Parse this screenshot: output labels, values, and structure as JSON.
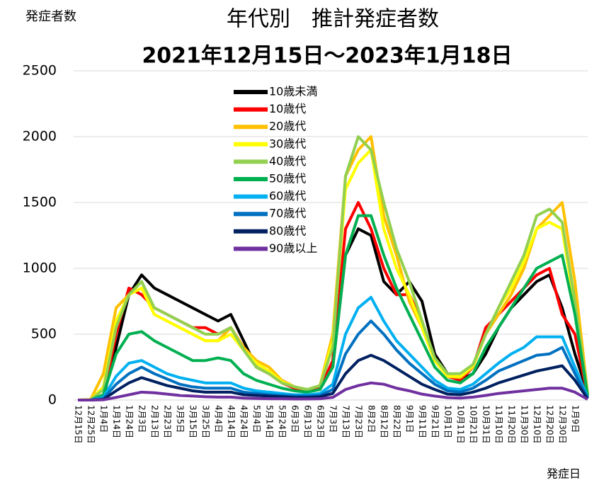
{
  "chart_data": {
    "type": "line",
    "title": "年代別　推計発症者数",
    "subtitle": "2021年12月15日～2023年1月18日",
    "y_label": "発症者数",
    "x_label": "発症日",
    "categories": [
      "12月15日",
      "12月25日",
      "1月4日",
      "1月14日",
      "1月24日",
      "2月3日",
      "2月13日",
      "2月23日",
      "3月5日",
      "3月15日",
      "3月25日",
      "4月4日",
      "4月14日",
      "4月24日",
      "5月4日",
      "5月14日",
      "5月24日",
      "6月3日",
      "6月13日",
      "6月23日",
      "7月3日",
      "7月13日",
      "7月23日",
      "8月2日",
      "8月12日",
      "8月22日",
      "9月1日",
      "9月11日",
      "9月21日",
      "10月1日",
      "10月11日",
      "10月21日",
      "10月31日",
      "11月10日",
      "11月20日",
      "11月30日",
      "12月10日",
      "12月20日",
      "12月30日",
      "1月9日",
      null
    ],
    "ylim": [
      0,
      2500
    ],
    "yticks": [
      0,
      500,
      1000,
      1500,
      2000,
      2500
    ],
    "grid": true,
    "series": [
      {
        "name": "10歳未満",
        "color": "#000000",
        "values": [
          0,
          0,
          20,
          400,
          800,
          950,
          850,
          800,
          750,
          700,
          650,
          600,
          650,
          450,
          250,
          200,
          150,
          100,
          80,
          100,
          250,
          1100,
          1300,
          1250,
          900,
          800,
          900,
          750,
          350,
          200,
          150,
          200,
          350,
          550,
          700,
          800,
          900,
          950,
          700,
          350,
          50
        ]
      },
      {
        "name": "10歳代",
        "color": "#ff0000",
        "values": [
          0,
          0,
          30,
          500,
          850,
          800,
          700,
          650,
          600,
          550,
          550,
          500,
          550,
          400,
          250,
          200,
          130,
          90,
          70,
          90,
          300,
          1300,
          1500,
          1300,
          1000,
          800,
          800,
          600,
          300,
          180,
          150,
          250,
          550,
          650,
          750,
          850,
          950,
          1000,
          650,
          500,
          30
        ]
      },
      {
        "name": "20歳代",
        "color": "#ffc000",
        "values": [
          0,
          5,
          200,
          700,
          800,
          850,
          650,
          600,
          550,
          500,
          450,
          450,
          550,
          400,
          300,
          250,
          150,
          100,
          80,
          110,
          500,
          1700,
          1900,
          2000,
          1400,
          1100,
          750,
          550,
          300,
          180,
          170,
          250,
          500,
          650,
          800,
          1000,
          1300,
          1400,
          1500,
          900,
          50
        ]
      },
      {
        "name": "30歳代",
        "color": "#ffff00",
        "values": [
          0,
          3,
          100,
          600,
          800,
          850,
          650,
          600,
          550,
          500,
          450,
          450,
          500,
          380,
          280,
          220,
          140,
          100,
          80,
          110,
          450,
          1600,
          1800,
          1900,
          1300,
          1000,
          800,
          550,
          300,
          180,
          180,
          260,
          500,
          700,
          850,
          1050,
          1300,
          1350,
          1300,
          700,
          40
        ]
      },
      {
        "name": "40歳代",
        "color": "#92d050",
        "values": [
          0,
          2,
          80,
          550,
          800,
          900,
          700,
          650,
          600,
          550,
          500,
          500,
          550,
          380,
          250,
          200,
          130,
          100,
          80,
          110,
          400,
          1700,
          2000,
          1900,
          1500,
          1150,
          900,
          600,
          320,
          200,
          200,
          270,
          500,
          700,
          900,
          1100,
          1400,
          1450,
          1350,
          750,
          40
        ]
      },
      {
        "name": "50歳代",
        "color": "#00b050",
        "values": [
          0,
          1,
          40,
          350,
          500,
          520,
          450,
          400,
          350,
          300,
          300,
          320,
          300,
          200,
          150,
          120,
          90,
          70,
          60,
          80,
          250,
          1100,
          1400,
          1400,
          1100,
          850,
          650,
          450,
          250,
          150,
          130,
          200,
          400,
          550,
          700,
          850,
          1000,
          1050,
          1100,
          650,
          30
        ]
      },
      {
        "name": "60歳代",
        "color": "#00b0f0",
        "values": [
          0,
          1,
          20,
          180,
          280,
          300,
          250,
          200,
          170,
          150,
          130,
          130,
          130,
          90,
          70,
          60,
          50,
          40,
          40,
          50,
          120,
          500,
          700,
          780,
          600,
          450,
          350,
          250,
          150,
          90,
          80,
          120,
          200,
          280,
          350,
          400,
          480,
          480,
          480,
          250,
          20
        ]
      },
      {
        "name": "70歳代",
        "color": "#0070c0",
        "values": [
          0,
          0,
          10,
          120,
          200,
          250,
          200,
          160,
          120,
          100,
          90,
          90,
          90,
          60,
          50,
          40,
          35,
          30,
          30,
          35,
          80,
          350,
          500,
          600,
          500,
          380,
          280,
          200,
          120,
          70,
          60,
          90,
          150,
          220,
          260,
          300,
          340,
          350,
          400,
          200,
          15
        ]
      },
      {
        "name": "80歳代",
        "color": "#002060",
        "values": [
          0,
          0,
          5,
          70,
          130,
          170,
          140,
          110,
          90,
          70,
          60,
          60,
          60,
          40,
          35,
          30,
          25,
          20,
          20,
          25,
          50,
          200,
          300,
          340,
          300,
          240,
          180,
          120,
          80,
          45,
          40,
          60,
          90,
          130,
          160,
          190,
          220,
          240,
          260,
          150,
          10
        ]
      },
      {
        "name": "90歳以上",
        "color": "#7030a0",
        "values": [
          0,
          0,
          2,
          20,
          40,
          60,
          55,
          45,
          35,
          30,
          25,
          22,
          22,
          15,
          12,
          10,
          10,
          8,
          8,
          10,
          20,
          80,
          110,
          130,
          120,
          90,
          70,
          45,
          30,
          18,
          15,
          22,
          35,
          50,
          60,
          70,
          80,
          90,
          90,
          60,
          5
        ]
      }
    ]
  }
}
